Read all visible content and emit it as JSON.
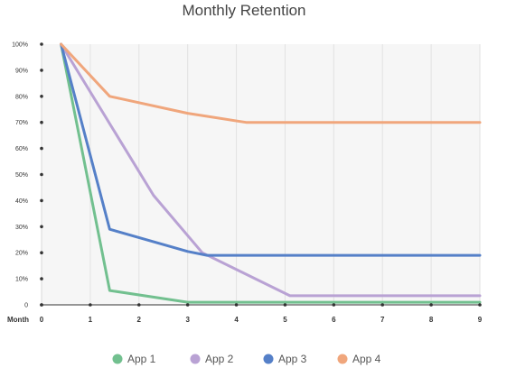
{
  "chart_data": {
    "type": "line",
    "title": "Monthly Retention",
    "xlabel": "Month",
    "ylabel": "",
    "x": [
      0,
      1,
      2,
      3,
      4,
      5,
      6,
      7,
      8,
      9
    ],
    "x_range": [
      0,
      9
    ],
    "ylim": [
      0,
      100
    ],
    "y_ticks": [
      "0",
      "10%",
      "20%",
      "30%",
      "40%",
      "50%",
      "60%",
      "70%",
      "80%",
      "90%",
      "100%"
    ],
    "grid": "vertical",
    "legend_position": "bottom",
    "series": [
      {
        "name": "App 1",
        "color": "#72c08f",
        "points": [
          [
            0.4,
            100
          ],
          [
            1.4,
            5.5
          ],
          [
            3,
            1
          ],
          [
            9,
            1
          ]
        ]
      },
      {
        "name": "App 2",
        "color": "#b9a2d4",
        "points": [
          [
            0.4,
            100
          ],
          [
            2.3,
            42
          ],
          [
            3.3,
            20
          ],
          [
            5.1,
            3.5
          ],
          [
            9,
            3.5
          ]
        ]
      },
      {
        "name": "App 3",
        "color": "#5580c8",
        "points": [
          [
            0.4,
            100
          ],
          [
            1.4,
            29
          ],
          [
            3,
            20.5
          ],
          [
            3.4,
            19
          ],
          [
            9,
            19
          ]
        ]
      },
      {
        "name": "App 4",
        "color": "#f0a67c",
        "points": [
          [
            0.4,
            100
          ],
          [
            1.4,
            80
          ],
          [
            3,
            73.5
          ],
          [
            4.2,
            70
          ],
          [
            9,
            70
          ]
        ]
      }
    ]
  }
}
